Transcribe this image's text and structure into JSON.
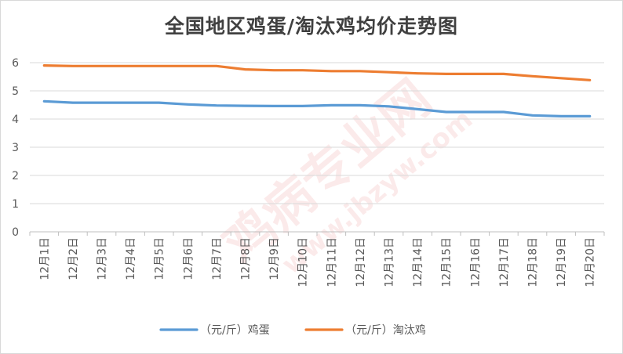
{
  "chart_data": {
    "type": "line",
    "title": "全国地区鸡蛋/淘汰鸡均价走势图",
    "xlabel": "",
    "ylabel": "",
    "categories": [
      "12月1日",
      "12月2日",
      "12月3日",
      "12月4日",
      "12月5日",
      "12月6日",
      "12月7日",
      "12月8日",
      "12月9日",
      "12月10日",
      "12月11日",
      "12月12日",
      "12月13日",
      "12月14日",
      "12月15日",
      "12月16日",
      "12月17日",
      "12月18日",
      "12月19日",
      "12月20日"
    ],
    "ylim": [
      0,
      6
    ],
    "yticks": [
      "0",
      "1",
      "2",
      "3",
      "4",
      "5",
      "6"
    ],
    "grid": true,
    "legend_position": "bottom",
    "series": [
      {
        "name": "（元/斤）鸡蛋",
        "color": "#5b9bd5",
        "values": [
          4.63,
          4.58,
          4.58,
          4.58,
          4.58,
          4.52,
          4.48,
          4.47,
          4.46,
          4.46,
          4.49,
          4.49,
          4.45,
          4.35,
          4.25,
          4.25,
          4.25,
          4.13,
          4.1,
          4.1
        ]
      },
      {
        "name": "（元/斤）淘汰鸡",
        "color": "#ed7d31",
        "values": [
          5.9,
          5.88,
          5.88,
          5.88,
          5.88,
          5.88,
          5.88,
          5.76,
          5.73,
          5.73,
          5.7,
          5.7,
          5.66,
          5.62,
          5.6,
          5.6,
          5.6,
          5.52,
          5.45,
          5.38
        ]
      }
    ]
  },
  "watermark": {
    "main": "鸡病专业网",
    "url": "www.jbzyw.com"
  }
}
